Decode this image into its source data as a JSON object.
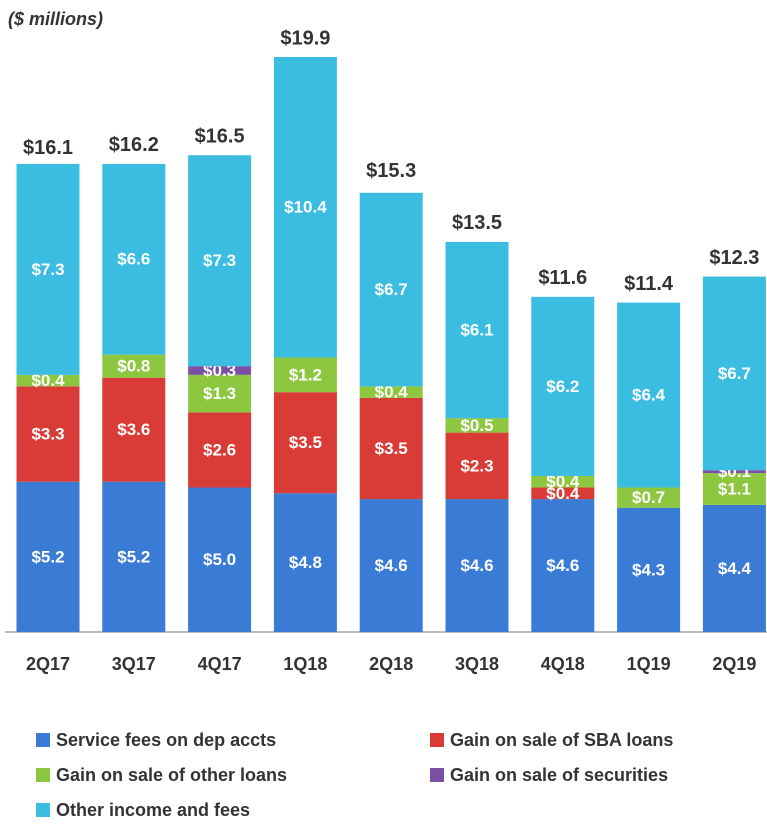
{
  "chart_data": {
    "type": "stacked_bar",
    "subtitle": "($ millions)",
    "categories": [
      "2Q17",
      "3Q17",
      "4Q17",
      "1Q18",
      "2Q18",
      "3Q18",
      "4Q18",
      "1Q19",
      "2Q19"
    ],
    "series": [
      {
        "name": "Service fees on dep accts",
        "color": "#3a7bd5",
        "values": [
          5.2,
          5.2,
          5.0,
          4.8,
          4.6,
          4.6,
          4.6,
          4.3,
          4.4
        ],
        "value_labels": [
          "$5.2",
          "$5.2",
          "$5.0",
          "$4.8",
          "$4.6",
          "$4.6",
          "$4.6",
          "$4.3",
          "$4.4"
        ]
      },
      {
        "name": "Gain on sale of SBA loans",
        "color": "#d93c36",
        "values": [
          3.3,
          3.6,
          2.6,
          3.5,
          3.5,
          2.3,
          0.4,
          null,
          null
        ],
        "value_labels": [
          "$3.3",
          "$3.6",
          "$2.6",
          "$3.5",
          "$3.5",
          "$2.3",
          "$0.4",
          null,
          null
        ]
      },
      {
        "name": "Gain on sale of other loans",
        "color": "#8dc63f",
        "values": [
          0.4,
          0.8,
          1.3,
          1.2,
          0.4,
          0.5,
          0.4,
          0.7,
          1.1
        ],
        "value_labels": [
          "$0.4",
          "$0.8",
          "$1.3",
          "$1.2",
          "$0.4",
          "$0.5",
          "$0.4",
          "$0.7",
          "$1.1"
        ]
      },
      {
        "name": "Gain on sale of securities",
        "color": "#7b4fa6",
        "values": [
          null,
          null,
          0.3,
          null,
          null,
          null,
          null,
          null,
          0.1
        ],
        "value_labels": [
          null,
          null,
          "$0.3",
          null,
          null,
          null,
          null,
          null,
          "$0.1"
        ]
      },
      {
        "name": "Other income and fees",
        "color": "#3bbde2",
        "values": [
          7.3,
          6.6,
          7.3,
          10.4,
          6.7,
          6.1,
          6.2,
          6.4,
          6.7
        ],
        "value_labels": [
          "$7.3",
          "$6.6",
          "$7.3",
          "$10.4",
          "$6.7",
          "$6.1",
          "$6.2",
          "$6.4",
          "$6.7"
        ]
      }
    ],
    "totals": [
      16.1,
      16.2,
      16.5,
      19.9,
      15.3,
      13.5,
      11.6,
      11.4,
      12.3
    ],
    "total_labels": [
      "$16.1",
      "$16.2",
      "$16.5",
      "$19.9",
      "$15.3",
      "$13.5",
      "$11.6",
      "$11.4",
      "$12.3"
    ]
  }
}
